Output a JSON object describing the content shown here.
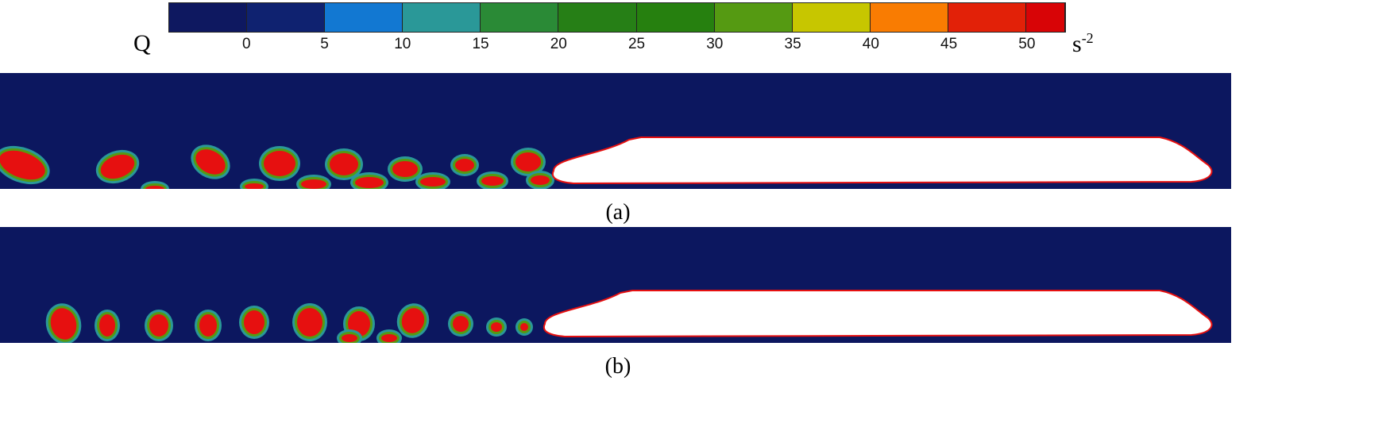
{
  "chart_data": {
    "type": "heatmap",
    "quantity_label": "Q",
    "unit_base": "s",
    "unit_exp": "-2",
    "colorbar": {
      "ticks": [
        "0",
        "5",
        "10",
        "15",
        "20",
        "25",
        "30",
        "35",
        "40",
        "45",
        "50"
      ],
      "range": [
        -5,
        52.5
      ],
      "colors": [
        "#0e1860",
        "#0f2270",
        "#1278d2",
        "#2a9898",
        "#2a8a36",
        "#267f16",
        "#26800f",
        "#559a12",
        "#c7c600",
        "#f97c02",
        "#e22108",
        "#d80406"
      ]
    },
    "background_color": "#0c175f",
    "vortex_color": "#e61010",
    "panels": [
      {
        "label": "(a)"
      },
      {
        "label": "(b)"
      }
    ]
  }
}
